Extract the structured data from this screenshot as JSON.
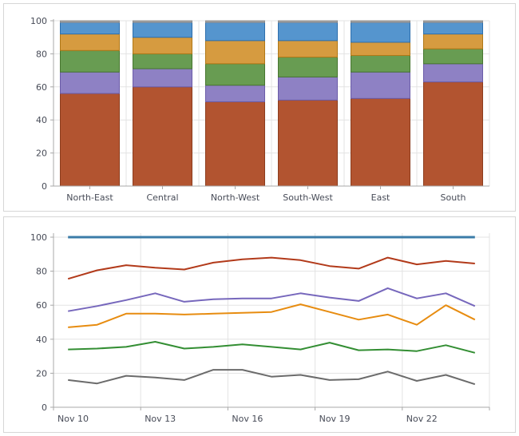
{
  "style": {
    "grid_color": "#e3e3e3",
    "axis_color": "#a8a8a8",
    "label_color": "#474b57",
    "panel_border_color": "#d6d6d6",
    "background": "#ffffff"
  },
  "chart_data": [
    {
      "type": "bar",
      "stacked": true,
      "title": "",
      "categories": [
        "North-East",
        "Central",
        "North-West",
        "South-West",
        "East",
        "South"
      ],
      "series": [
        {
          "name": "rust",
          "color": "#b25430",
          "stroke": "#8c3d1e",
          "values": [
            56,
            60,
            51,
            52,
            53,
            63
          ]
        },
        {
          "name": "purple",
          "color": "#8e81c4",
          "stroke": "#6b5ca8",
          "values": [
            13,
            11,
            10,
            14,
            16,
            11
          ]
        },
        {
          "name": "green",
          "color": "#689c52",
          "stroke": "#47762f",
          "values": [
            13,
            9,
            13,
            12,
            10,
            9
          ]
        },
        {
          "name": "orange",
          "color": "#d69b40",
          "stroke": "#b07817",
          "values": [
            10,
            10,
            14,
            10,
            8,
            9
          ]
        },
        {
          "name": "blue",
          "color": "#5595ce",
          "stroke": "#2e6fad",
          "values": [
            7,
            9,
            11,
            11,
            12,
            7
          ]
        },
        {
          "name": "gray",
          "color": "#a6a6a6",
          "stroke": "#8c8c8c",
          "values": [
            1,
            1,
            1,
            1,
            1,
            1
          ]
        }
      ],
      "ylim": [
        0,
        100
      ],
      "yticks": [
        0,
        20,
        40,
        60,
        80,
        100
      ],
      "grid": true,
      "legend": "none"
    },
    {
      "type": "line",
      "title": "",
      "x": [
        "Nov 10",
        "Nov 11",
        "Nov 12",
        "Nov 13",
        "Nov 14",
        "Nov 15",
        "Nov 16",
        "Nov 17",
        "Nov 18",
        "Nov 19",
        "Nov 20",
        "Nov 21",
        "Nov 22",
        "Nov 23",
        "Nov 24"
      ],
      "x_tick_labels": [
        "Nov 10",
        "Nov 13",
        "Nov 16",
        "Nov 19",
        "Nov 22"
      ],
      "x_tick_interval_days": 3,
      "series": [
        {
          "name": "blue",
          "color": "#3b7ca8",
          "width": 3,
          "values": [
            100,
            100,
            100,
            100,
            100,
            100,
            100,
            100,
            100,
            100,
            100,
            100,
            100,
            100,
            100
          ]
        },
        {
          "name": "red",
          "color": "#b23a1a",
          "width": 2,
          "values": [
            75.5,
            80.5,
            83.5,
            82,
            81,
            85,
            87,
            88,
            86.5,
            83,
            81.5,
            88,
            84,
            86,
            84.5
          ]
        },
        {
          "name": "purple",
          "color": "#7667bc",
          "width": 2,
          "values": [
            56.5,
            59.5,
            63,
            67,
            62,
            63.5,
            64,
            64,
            67,
            64.5,
            62.5,
            70,
            64,
            67,
            59.5
          ]
        },
        {
          "name": "orange",
          "color": "#e78c10",
          "width": 2,
          "values": [
            47,
            48.5,
            55,
            55,
            54.5,
            55,
            55.5,
            56,
            60.5,
            56,
            51.5,
            54.5,
            48.5,
            60,
            51.5
          ]
        },
        {
          "name": "green",
          "color": "#338e33",
          "width": 2,
          "values": [
            34,
            34.5,
            35.5,
            38.5,
            34.5,
            35.5,
            37,
            35.5,
            34,
            38,
            33.5,
            34,
            33,
            36.5,
            32
          ]
        },
        {
          "name": "gray",
          "color": "#6b6b6b",
          "width": 2,
          "values": [
            16,
            14,
            18.5,
            17.5,
            16,
            22,
            22,
            18,
            19,
            16,
            16.5,
            21,
            15.5,
            19,
            13.5
          ]
        }
      ],
      "ylim": [
        0,
        100
      ],
      "yticks": [
        0,
        20,
        40,
        60,
        80,
        100
      ],
      "grid": true,
      "legend": "none"
    }
  ]
}
